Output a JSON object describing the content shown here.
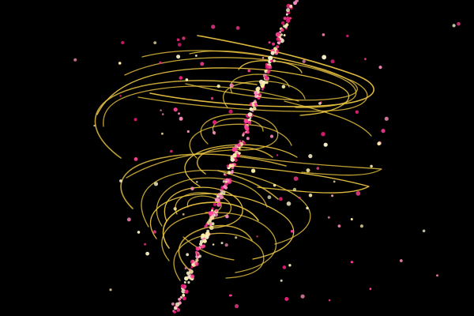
{
  "scene": {
    "subject": "particle-helix-visualization",
    "colors": {
      "background": "#000000",
      "spiral": "#e9c341",
      "particle_hot_pink": "#ff3d94",
      "particle_magenta": "#e61e78",
      "particle_light_pink": "#ff8fbf",
      "particle_cream": "#f7efc7",
      "particle_pale_yellow": "#fff0a6"
    }
  }
}
